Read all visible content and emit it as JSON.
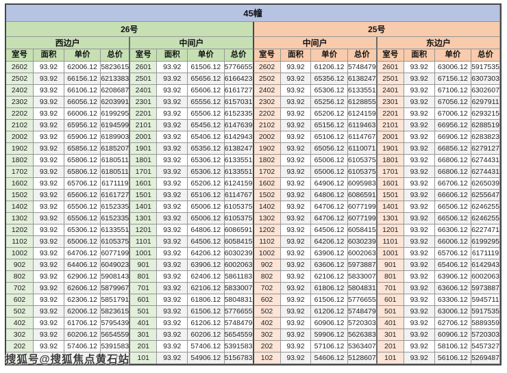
{
  "title": "45幢",
  "columns": [
    "室号",
    "面积",
    "单价",
    "总价"
  ],
  "buildings": [
    {
      "name": "26号",
      "theme": "green",
      "units": [
        {
          "name": "西边户",
          "rows": [
            [
              "2602",
              "93.92",
              "62006.12",
              "5823615"
            ],
            [
              "2502",
              "93.92",
              "66156.12",
              "6213383"
            ],
            [
              "2402",
              "93.92",
              "66106.12",
              "6208687"
            ],
            [
              "2302",
              "93.92",
              "66056.12",
              "6203991"
            ],
            [
              "2202",
              "93.92",
              "66006.12",
              "6199295"
            ],
            [
              "2102",
              "93.92",
              "65956.12",
              "6194599"
            ],
            [
              "2002",
              "93.92",
              "65906.12",
              "6189903"
            ],
            [
              "1902",
              "93.92",
              "65856.12",
              "6185207"
            ],
            [
              "1802",
              "93.92",
              "65806.12",
              "6180511"
            ],
            [
              "1702",
              "93.92",
              "65806.12",
              "6180511"
            ],
            [
              "1602",
              "93.92",
              "65706.12",
              "6171119"
            ],
            [
              "1502",
              "93.92",
              "65606.12",
              "6161727"
            ],
            [
              "1402",
              "93.92",
              "65506.12",
              "6152335"
            ],
            [
              "1302",
              "93.92",
              "65506.12",
              "6152335"
            ],
            [
              "1202",
              "93.92",
              "65306.12",
              "6133551"
            ],
            [
              "1102",
              "93.92",
              "65006.12",
              "6105375"
            ],
            [
              "1002",
              "93.92",
              "64706.12",
              "6077199"
            ],
            [
              "902",
              "93.92",
              "64406.12",
              "6049023"
            ],
            [
              "802",
              "93.92",
              "62906.12",
              "5908143"
            ],
            [
              "702",
              "93.92",
              "62606.12",
              "5879967"
            ],
            [
              "602",
              "93.92",
              "62306.12",
              "5851791"
            ],
            [
              "502",
              "93.92",
              "62006.12",
              "5823615"
            ],
            [
              "402",
              "93.92",
              "61706.12",
              "5795439"
            ],
            [
              "302",
              "93.92",
              "60206.12",
              "5654559"
            ],
            [
              "202",
              "93.92",
              "57406.12",
              "5391583"
            ],
            [
              "",
              "",
              "",
              "743"
            ]
          ]
        },
        {
          "name": "中间户",
          "rows": [
            [
              "2601",
              "93.92",
              "61506.12",
              "5776655"
            ],
            [
              "2501",
              "93.92",
              "65656.12",
              "6166423"
            ],
            [
              "2401",
              "93.92",
              "65606.12",
              "6161727"
            ],
            [
              "2301",
              "93.92",
              "65556.12",
              "6157031"
            ],
            [
              "2201",
              "93.92",
              "65506.12",
              "6152335"
            ],
            [
              "2101",
              "93.92",
              "65456.12",
              "6147639"
            ],
            [
              "2001",
              "93.92",
              "65406.12",
              "6142943"
            ],
            [
              "1901",
              "93.92",
              "65356.12",
              "6138247"
            ],
            [
              "1801",
              "93.92",
              "65306.12",
              "6133551"
            ],
            [
              "1701",
              "93.92",
              "65306.12",
              "6133551"
            ],
            [
              "1601",
              "93.92",
              "65206.12",
              "6124159"
            ],
            [
              "1501",
              "93.92",
              "65106.12",
              "6114767"
            ],
            [
              "1401",
              "93.92",
              "65006.12",
              "6105375"
            ],
            [
              "1301",
              "93.92",
              "65006.12",
              "6105375"
            ],
            [
              "1201",
              "93.92",
              "64806.12",
              "6086591"
            ],
            [
              "1101",
              "93.92",
              "64506.12",
              "6058415"
            ],
            [
              "1001",
              "93.92",
              "64206.12",
              "6030239"
            ],
            [
              "901",
              "93.92",
              "63906.12",
              "6002063"
            ],
            [
              "801",
              "93.92",
              "62406.12",
              "5861183"
            ],
            [
              "701",
              "93.92",
              "62106.12",
              "5833007"
            ],
            [
              "601",
              "93.92",
              "61806.12",
              "5804831"
            ],
            [
              "501",
              "93.92",
              "61506.12",
              "5776655"
            ],
            [
              "401",
              "93.92",
              "61206.12",
              "5748479"
            ],
            [
              "301",
              "93.92",
              "60206.12",
              "5654559"
            ],
            [
              "201",
              "93.92",
              "57406.12",
              "5391583"
            ],
            [
              "101",
              "93.92",
              "54906.12",
              "5156783"
            ]
          ]
        }
      ]
    },
    {
      "name": "25号",
      "theme": "orange",
      "units": [
        {
          "name": "中间户",
          "rows": [
            [
              "2602",
              "93.92",
              "61206.12",
              "5748479"
            ],
            [
              "2502",
              "93.92",
              "65356.12",
              "6138247"
            ],
            [
              "2402",
              "93.92",
              "65306.12",
              "6133551"
            ],
            [
              "2302",
              "93.92",
              "65256.12",
              "6128855"
            ],
            [
              "2202",
              "93.92",
              "65206.12",
              "6124159"
            ],
            [
              "2102",
              "93.92",
              "65156.12",
              "6119463"
            ],
            [
              "2002",
              "93.92",
              "65106.12",
              "6114767"
            ],
            [
              "1902",
              "93.92",
              "65056.12",
              "6110071"
            ],
            [
              "1802",
              "93.92",
              "65006.12",
              "6105375"
            ],
            [
              "1702",
              "93.92",
              "65006.12",
              "6105375"
            ],
            [
              "1602",
              "93.92",
              "64906.12",
              "6095983"
            ],
            [
              "1502",
              "93.92",
              "64806.12",
              "6086591"
            ],
            [
              "1402",
              "93.92",
              "64706.12",
              "6077199"
            ],
            [
              "1302",
              "93.92",
              "64706.12",
              "6077199"
            ],
            [
              "1202",
              "93.92",
              "64506.12",
              "6058415"
            ],
            [
              "1102",
              "93.92",
              "64206.12",
              "6030239"
            ],
            [
              "1002",
              "93.92",
              "63906.12",
              "6002063"
            ],
            [
              "902",
              "93.92",
              "63606.12",
              "5973887"
            ],
            [
              "802",
              "93.92",
              "62106.12",
              "5833007"
            ],
            [
              "702",
              "93.92",
              "61806.12",
              "5804831"
            ],
            [
              "602",
              "93.92",
              "61506.12",
              "5776655"
            ],
            [
              "502",
              "93.92",
              "61206.12",
              "5748479"
            ],
            [
              "402",
              "93.92",
              "60906.12",
              "5720303"
            ],
            [
              "302",
              "93.92",
              "59906.12",
              "5626383"
            ],
            [
              "202",
              "93.92",
              "57106.12",
              "5363407"
            ],
            [
              "102",
              "93.92",
              "54606.12",
              "5128607"
            ]
          ]
        },
        {
          "name": "东边户",
          "rows": [
            [
              "2601",
              "93.92",
              "63006.12",
              "5917535"
            ],
            [
              "2501",
              "93.92",
              "67156.12",
              "6307303"
            ],
            [
              "2401",
              "93.92",
              "67106.12",
              "6302607"
            ],
            [
              "2301",
              "93.92",
              "67056.12",
              "6297911"
            ],
            [
              "2201",
              "93.92",
              "67006.12",
              "6293215"
            ],
            [
              "2101",
              "93.92",
              "66956.12",
              "6288519"
            ],
            [
              "2001",
              "93.92",
              "66906.12",
              "6283823"
            ],
            [
              "1901",
              "93.92",
              "66856.12",
              "6279127"
            ],
            [
              "1801",
              "93.92",
              "66806.12",
              "6274431"
            ],
            [
              "1701",
              "93.92",
              "66806.12",
              "6274431"
            ],
            [
              "1601",
              "93.92",
              "66706.12",
              "6265039"
            ],
            [
              "1501",
              "93.92",
              "66606.12",
              "6255647"
            ],
            [
              "1401",
              "93.92",
              "66506.12",
              "6246255"
            ],
            [
              "1301",
              "93.92",
              "66506.12",
              "6246255"
            ],
            [
              "1201",
              "93.92",
              "66306.12",
              "6227471"
            ],
            [
              "1101",
              "93.92",
              "66006.12",
              "6199295"
            ],
            [
              "1001",
              "93.92",
              "65706.12",
              "6171119"
            ],
            [
              "901",
              "93.92",
              "65406.12",
              "6142943"
            ],
            [
              "801",
              "93.92",
              "63906.12",
              "6002063"
            ],
            [
              "701",
              "93.92",
              "63606.12",
              "5973887"
            ],
            [
              "601",
              "93.92",
              "63306.12",
              "5945711"
            ],
            [
              "501",
              "93.92",
              "63006.12",
              "5917535"
            ],
            [
              "401",
              "93.92",
              "62706.12",
              "5889359"
            ],
            [
              "301",
              "93.92",
              "60906.12",
              "5720303"
            ],
            [
              "201",
              "93.92",
              "58106.12",
              "5457327"
            ],
            [
              "101",
              "93.92",
              "56106.12",
              "5269487"
            ]
          ]
        }
      ]
    }
  ],
  "watermark": {
    "text": "搜狐号@搜狐焦点黄石站",
    "visible_tail_of_covered_total": "743"
  },
  "colors": {
    "title_bg": "#b7c3e3",
    "green_header": "#c6e0b4",
    "green_light": "#e2efda",
    "orange_header": "#f8cbad",
    "orange_light": "#fce4d6",
    "row_alt": "#f2f2f2",
    "border": "#949494",
    "outer_border": "#454545"
  }
}
